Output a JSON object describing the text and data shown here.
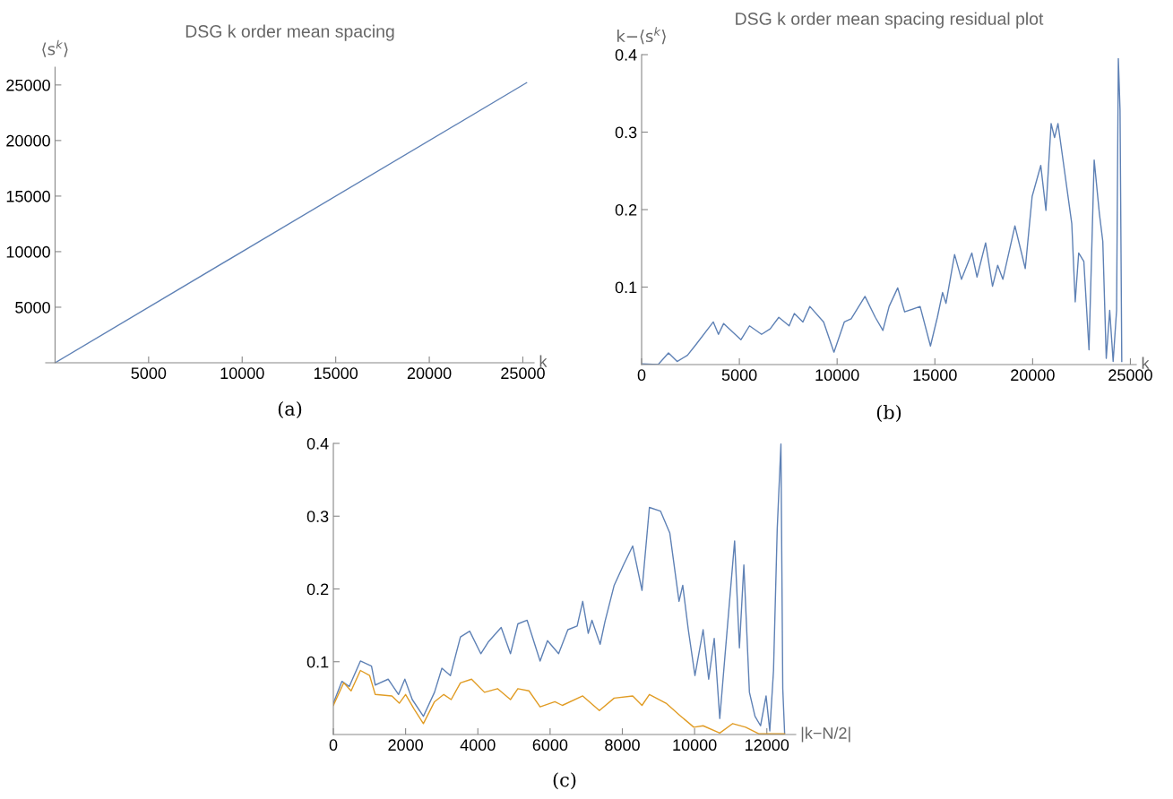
{
  "chart_data": [
    {
      "type": "line",
      "title": "DSG k order mean spacing",
      "xlabel": "k",
      "ylabel": "⟨s$^{k}$⟩",
      "annotations": [
        "(a)"
      ],
      "series": [
        {
          "color": "#5e81b5",
          "x": [
            0,
            25200
          ],
          "values": [
            0,
            25200
          ]
        }
      ],
      "xlim": [
        -500,
        25600
      ],
      "ylim": [
        0,
        26600
      ],
      "xticks": [
        5000,
        10000,
        15000,
        20000,
        25000
      ],
      "yticks": [
        5000,
        10000,
        15000,
        20000,
        25000
      ],
      "grid": false,
      "legend": false
    },
    {
      "type": "line",
      "title": "DSG k order mean spacing residual plot",
      "xlabel": "k",
      "ylabel": "k−⟨s$^{k}$⟩",
      "annotations": [
        "(b)"
      ],
      "series": [
        {
          "color": "#5e81b5",
          "x": [
            0,
            846,
            1375,
            1816,
            2345,
            2786,
            3667,
            3931,
            4196,
            5078,
            5519,
            6136,
            6576,
            7017,
            7546,
            7810,
            8251,
            8604,
            9309,
            9838,
            10367,
            10720,
            11425,
            11953,
            12341,
            12659,
            13099,
            13452,
            14245,
            14774,
            15127,
            15392,
            15568,
            16008,
            16361,
            16890,
            17155,
            17595,
            17948,
            18213,
            18477,
            19094,
            19623,
            19975,
            20416,
            20680,
            20945,
            21121,
            21297,
            22002,
            22178,
            22355,
            22619,
            22883,
            23148,
            23413,
            23589,
            23765,
            23942,
            24118,
            24294,
            24383,
            24471,
            24559
          ],
          "values": [
            0.001,
            0,
            0.015,
            0.004,
            0.012,
            0.026,
            0.055,
            0.039,
            0.053,
            0.032,
            0.05,
            0.039,
            0.046,
            0.061,
            0.05,
            0.066,
            0.055,
            0.075,
            0.055,
            0.016,
            0.055,
            0.059,
            0.088,
            0.061,
            0.044,
            0.075,
            0.099,
            0.068,
            0.075,
            0.024,
            0.061,
            0.093,
            0.079,
            0.142,
            0.11,
            0.144,
            0.113,
            0.157,
            0.101,
            0.128,
            0.11,
            0.179,
            0.124,
            0.217,
            0.257,
            0.199,
            0.311,
            0.293,
            0.311,
            0.182,
            0.081,
            0.144,
            0.133,
            0.019,
            0.264,
            0.195,
            0.159,
            0.008,
            0.07,
            0.004,
            0.07,
            0.395,
            0.328,
            0.004
          ]
        }
      ],
      "xlim": [
        0,
        25300
      ],
      "ylim": [
        0,
        0.4
      ],
      "xticks": [
        0,
        5000,
        10000,
        15000,
        20000,
        25000
      ],
      "yticks": [
        0.1,
        0.2,
        0.3,
        0.4
      ],
      "grid": false,
      "legend": false
    },
    {
      "type": "line",
      "xlabel": "|k−N/2|",
      "annotations": [
        "(c)"
      ],
      "series": [
        {
          "color": "#5e81b5",
          "x": [
            0,
            236,
            441,
            749,
            1056,
            1159,
            1518,
            1805,
            1979,
            2185,
            2492,
            2800,
            3005,
            3241,
            3518,
            3774,
            4082,
            4287,
            4646,
            4903,
            5108,
            5364,
            5723,
            5928,
            6236,
            6492,
            6749,
            6903,
            7056,
            7159,
            7385,
            7518,
            7774,
            8031,
            8287,
            8544,
            8749,
            9056,
            9313,
            9569,
            9672,
            9826,
            10010,
            10236,
            10390,
            10544,
            10697,
            10851,
            11108,
            11241,
            11364,
            11518,
            11672,
            11826,
            11979,
            12082,
            12185,
            12287,
            12390,
            12441,
            12492
          ],
          "values": [
            0.043,
            0.073,
            0.066,
            0.101,
            0.094,
            0.068,
            0.076,
            0.055,
            0.076,
            0.048,
            0.025,
            0.058,
            0.091,
            0.081,
            0.134,
            0.142,
            0.111,
            0.127,
            0.147,
            0.111,
            0.152,
            0.157,
            0.101,
            0.129,
            0.111,
            0.144,
            0.149,
            0.183,
            0.139,
            0.157,
            0.124,
            0.155,
            0.205,
            0.233,
            0.259,
            0.198,
            0.312,
            0.307,
            0.277,
            0.183,
            0.205,
            0.144,
            0.081,
            0.144,
            0.076,
            0.132,
            0.022,
            0.114,
            0.266,
            0.119,
            0.233,
            0.058,
            0.025,
            0.012,
            0.053,
            0.005,
            0.088,
            0.282,
            0.399,
            0.063,
            0.002
          ]
        },
        {
          "color": "#e19c24",
          "x": [
            0,
            287,
            492,
            749,
            1005,
            1159,
            1621,
            1826,
            2000,
            2236,
            2492,
            2800,
            3056,
            3262,
            3518,
            3826,
            4185,
            4544,
            4903,
            5108,
            5415,
            5723,
            6133,
            6338,
            6903,
            7364,
            7774,
            8287,
            8544,
            8749,
            9210,
            9621,
            9979,
            10236,
            10697,
            11056,
            11415,
            11774,
            12492
          ],
          "values": [
            0.04,
            0.071,
            0.06,
            0.088,
            0.081,
            0.055,
            0.053,
            0.043,
            0.055,
            0.035,
            0.015,
            0.045,
            0.055,
            0.048,
            0.071,
            0.076,
            0.058,
            0.063,
            0.048,
            0.063,
            0.06,
            0.038,
            0.045,
            0.04,
            0.053,
            0.033,
            0.05,
            0.053,
            0.04,
            0.055,
            0.043,
            0.025,
            0.01,
            0.012,
            0.002,
            0.015,
            0.01,
            0.001,
            0.001
          ]
        }
      ],
      "xlim": [
        0,
        12800
      ],
      "ylim": [
        0,
        0.4
      ],
      "xticks": [
        0,
        2000,
        4000,
        6000,
        8000,
        10000,
        12000
      ],
      "yticks": [
        0.1,
        0.2,
        0.3,
        0.4
      ],
      "grid": false,
      "legend": false
    }
  ]
}
